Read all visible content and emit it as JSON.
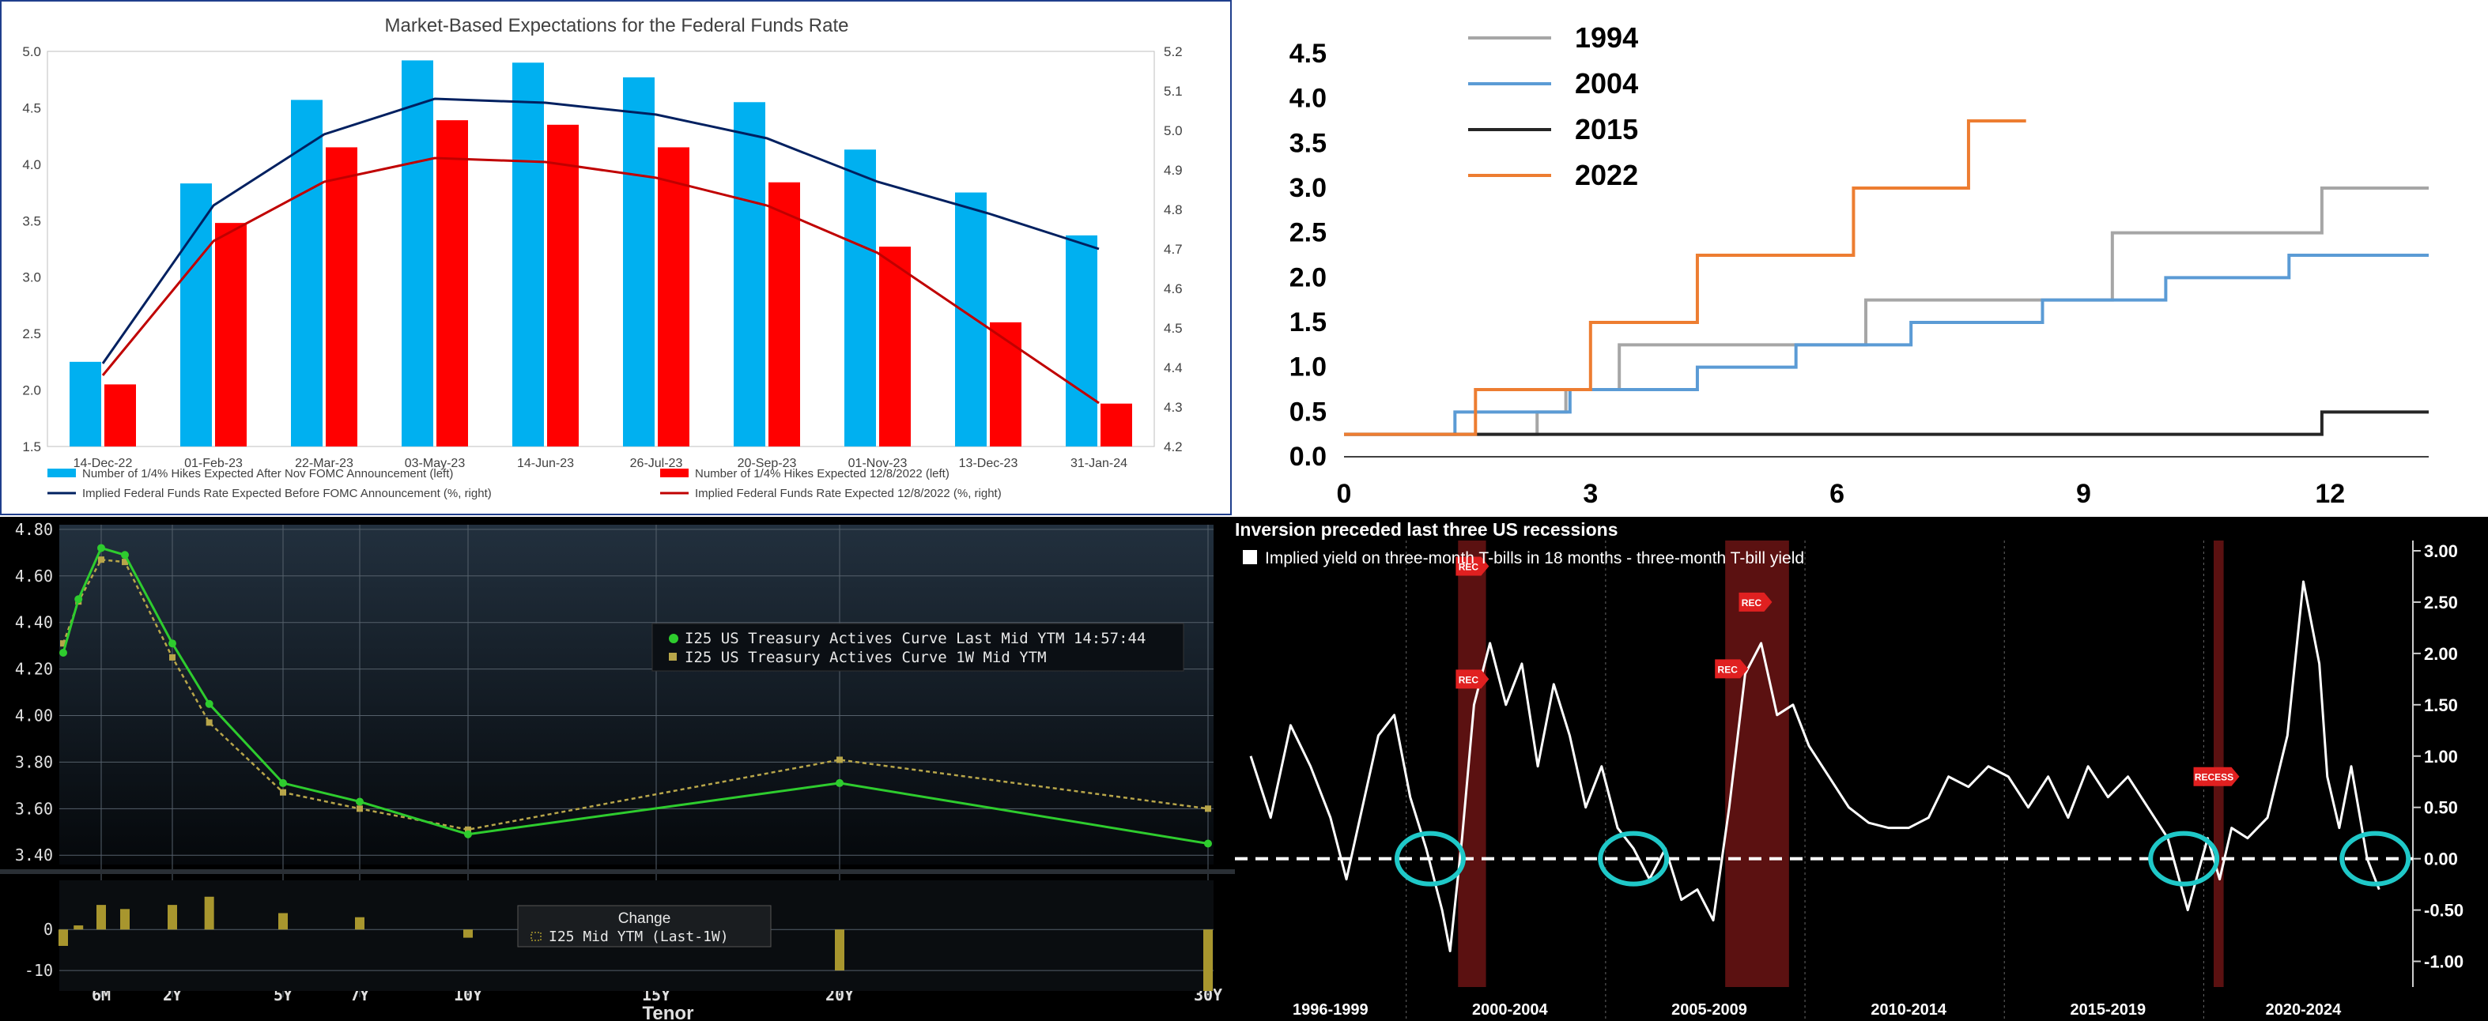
{
  "chart_data": [
    {
      "id": "fed-funds-expectations",
      "type": "bar",
      "title": "Market-Based Expectations for the Federal Funds Rate",
      "categories": [
        "14-Dec-22",
        "01-Feb-23",
        "22-Mar-23",
        "03-May-23",
        "14-Jun-23",
        "26-Jul-23",
        "20-Sep-23",
        "01-Nov-23",
        "13-Dec-23",
        "31-Jan-24"
      ],
      "series": [
        {
          "name": "Number of 1/4% Hikes Expected After Nov FOMC Announcement (left)",
          "type": "bar",
          "axis": "left",
          "color": "#00b0f0",
          "values": [
            2.25,
            3.83,
            4.57,
            4.92,
            4.9,
            4.77,
            4.55,
            4.13,
            3.75,
            3.37
          ]
        },
        {
          "name": "Number of 1/4% Hikes Expected 12/8/2022 (left)",
          "type": "bar",
          "axis": "left",
          "color": "#ff0000",
          "values": [
            2.05,
            3.48,
            4.15,
            4.39,
            4.35,
            4.15,
            3.84,
            3.27,
            2.6,
            1.88
          ]
        },
        {
          "name": "Implied Federal Funds Rate Expected Before FOMC Announcement (%, right)",
          "type": "line",
          "axis": "right",
          "color": "#002060",
          "values": [
            4.41,
            4.81,
            4.99,
            5.08,
            5.07,
            5.04,
            4.98,
            4.87,
            4.79,
            4.7
          ]
        },
        {
          "name": "Implied Federal Funds Rate Expected 12/8/2022 (%, right)",
          "type": "line",
          "axis": "right",
          "color": "#c00000",
          "values": [
            4.38,
            4.72,
            4.87,
            4.93,
            4.92,
            4.88,
            4.81,
            4.69,
            4.5,
            4.31
          ]
        }
      ],
      "yleft": {
        "ylim": [
          1.5,
          5.0
        ],
        "ticks": [
          "1.5",
          "2.0",
          "2.5",
          "3.0",
          "3.5",
          "4.0",
          "4.5",
          "5.0"
        ]
      },
      "yright": {
        "ylim": [
          4.2,
          5.2
        ],
        "ticks": [
          "4.2",
          "4.3",
          "4.4",
          "4.5",
          "4.6",
          "4.7",
          "4.8",
          "4.9",
          "5.0",
          "5.1",
          "5.2"
        ]
      }
    },
    {
      "id": "hiking-cycles",
      "type": "line",
      "title": "",
      "xlim": [
        0,
        13.2
      ],
      "ylim": [
        0,
        4.5
      ],
      "xticks": [
        "0",
        "3",
        "6",
        "9",
        "12"
      ],
      "yticks": [
        "0.0",
        "0.5",
        "1.0",
        "1.5",
        "2.0",
        "2.5",
        "3.0",
        "3.5",
        "4.0",
        "4.5"
      ],
      "series": [
        {
          "name": "1994",
          "color": "#a6a6a6",
          "x": [
            0,
            2.35,
            2.35,
            2.35,
            2.7,
            2.7,
            3.35,
            3.35,
            6.35,
            6.35,
            9.35,
            9.35,
            11.9,
            11.9,
            13.2
          ],
          "y": [
            0.25,
            0.25,
            0.5,
            0.5,
            0.5,
            0.75,
            0.75,
            1.25,
            1.25,
            1.75,
            1.75,
            2.5,
            2.5,
            3.0,
            3.0
          ]
        },
        {
          "name": "2004",
          "color": "#5b9bd5",
          "x": [
            0,
            1.35,
            1.35,
            2.75,
            2.75,
            4.3,
            4.3,
            5.5,
            5.5,
            6.9,
            6.9,
            8.5,
            8.5,
            10.0,
            10.0,
            11.5,
            11.5,
            13.2
          ],
          "y": [
            0.25,
            0.25,
            0.5,
            0.5,
            0.75,
            0.75,
            1.0,
            1.0,
            1.25,
            1.25,
            1.5,
            1.5,
            1.75,
            1.75,
            2.0,
            2.0,
            2.25,
            2.25
          ],
          "note_points_from_image": true
        },
        {
          "name": "2015",
          "color": "#262626",
          "x": [
            0,
            11.9,
            11.9,
            13.2
          ],
          "y": [
            0.25,
            0.25,
            0.5,
            0.5
          ]
        },
        {
          "name": "2022",
          "color": "#ed7d31",
          "x": [
            0,
            1.6,
            1.6,
            3.0,
            3.0,
            4.3,
            4.3,
            6.2,
            6.2,
            7.6,
            7.6,
            8.3
          ],
          "y": [
            0.25,
            0.25,
            0.75,
            0.75,
            1.5,
            1.5,
            2.25,
            2.25,
            3.0,
            3.0,
            3.75,
            3.75
          ]
        }
      ]
    },
    {
      "id": "treasury-curve",
      "type": "line",
      "title": "",
      "xlabel": "Tenor",
      "xticks": [
        "6M",
        "2Y",
        "5Y",
        "7Y",
        "10Y",
        "15Y",
        "20Y",
        "30Y"
      ],
      "ylim": [
        3.36,
        4.82
      ],
      "yticks": [
        "3.40",
        "3.60",
        "3.80",
        "4.00",
        "4.20",
        "4.40",
        "4.60",
        "4.80"
      ],
      "series": [
        {
          "name": "I25 US Treasury Actives Curve Last Mid YTM 14:57:44",
          "color": "#2ecc2e",
          "x": [
            0.083,
            0.25,
            0.5,
            1,
            2,
            3,
            5,
            7,
            10,
            20,
            30
          ],
          "y": [
            4.27,
            4.5,
            4.72,
            4.69,
            4.31,
            4.05,
            3.71,
            3.63,
            3.49,
            3.71,
            3.45
          ]
        },
        {
          "name": "I25 US Treasury Actives Curve 1W Mid YTM",
          "color": "#b8a64a",
          "x": [
            0.083,
            0.25,
            0.5,
            1,
            2,
            3,
            5,
            7,
            10,
            20,
            30
          ],
          "y": [
            4.31,
            4.49,
            4.67,
            4.66,
            4.25,
            3.97,
            3.67,
            3.6,
            3.51,
            3.81,
            3.6
          ]
        }
      ],
      "change": {
        "title": "Change",
        "series_name": "I25 Mid YTM (Last-1W)",
        "yticks": [
          "0",
          "-10"
        ],
        "ylim": [
          -15,
          12
        ],
        "x": [
          0.083,
          0.25,
          0.5,
          1,
          2,
          3,
          5,
          7,
          10,
          20,
          30
        ],
        "y": [
          -4,
          1,
          6,
          5,
          6,
          8,
          4,
          3,
          -2,
          -10,
          -15
        ]
      }
    },
    {
      "id": "tbill-spread",
      "type": "line",
      "title": "Inversion preceded last three US recessions",
      "legend": "Implied yield on three-month T-bills in 18 months - three-month T-bill yield",
      "ylim": [
        -1.25,
        3.1
      ],
      "yticks": [
        "3.00",
        "2.50",
        "2.00",
        "1.50",
        "1.00",
        "0.50",
        "0.00",
        "-0.50",
        "-1.00"
      ],
      "periods": [
        "1996-1999",
        "2000-2004",
        "2005-2009",
        "2010-2014",
        "2015-2019",
        "2020-2024"
      ],
      "recession_label": "REC",
      "recession_label_2020": "RECESS",
      "series": [
        {
          "name": "Implied yield on three-month T-bills in 18 months - three-month T-bill yield",
          "color": "#ffffff",
          "x": [
            1996.0,
            1996.5,
            1997.0,
            1997.5,
            1998.0,
            1998.4,
            1998.8,
            1999.2,
            1999.6,
            2000.0,
            2000.4,
            2000.8,
            2001.0,
            2001.3,
            2001.6,
            2002.0,
            2002.4,
            2002.8,
            2003.2,
            2003.6,
            2004.0,
            2004.4,
            2004.8,
            2005.2,
            2005.6,
            2006.0,
            2006.4,
            2006.8,
            2007.2,
            2007.6,
            2008.0,
            2008.4,
            2008.8,
            2009.2,
            2009.6,
            2010.0,
            2010.5,
            2011.0,
            2011.5,
            2012.0,
            2012.5,
            2013.0,
            2013.5,
            2014.0,
            2014.5,
            2015.0,
            2015.5,
            2016.0,
            2016.5,
            2017.0,
            2017.5,
            2018.0,
            2018.5,
            2019.0,
            2019.5,
            2020.0,
            2020.3,
            2020.6,
            2021.0,
            2021.5,
            2022.0,
            2022.4,
            2022.8,
            2023.0,
            2023.3,
            2023.6,
            2024.0,
            2024.3
          ],
          "y": [
            1.0,
            0.4,
            1.3,
            0.9,
            0.4,
            -0.2,
            0.5,
            1.2,
            1.4,
            0.6,
            0.1,
            -0.5,
            -0.9,
            0.2,
            1.5,
            2.1,
            1.5,
            1.9,
            0.9,
            1.7,
            1.2,
            0.5,
            0.9,
            0.3,
            0.1,
            -0.2,
            0.1,
            -0.4,
            -0.3,
            -0.6,
            0.5,
            1.8,
            2.1,
            1.4,
            1.5,
            1.1,
            0.8,
            0.5,
            0.35,
            0.3,
            0.3,
            0.4,
            0.8,
            0.7,
            0.9,
            0.8,
            0.5,
            0.8,
            0.4,
            0.9,
            0.6,
            0.8,
            0.5,
            0.2,
            -0.5,
            0.2,
            -0.2,
            0.3,
            0.2,
            0.4,
            1.2,
            2.7,
            1.9,
            0.8,
            0.3,
            0.9,
            0.0,
            -0.3
          ]
        }
      ]
    }
  ]
}
